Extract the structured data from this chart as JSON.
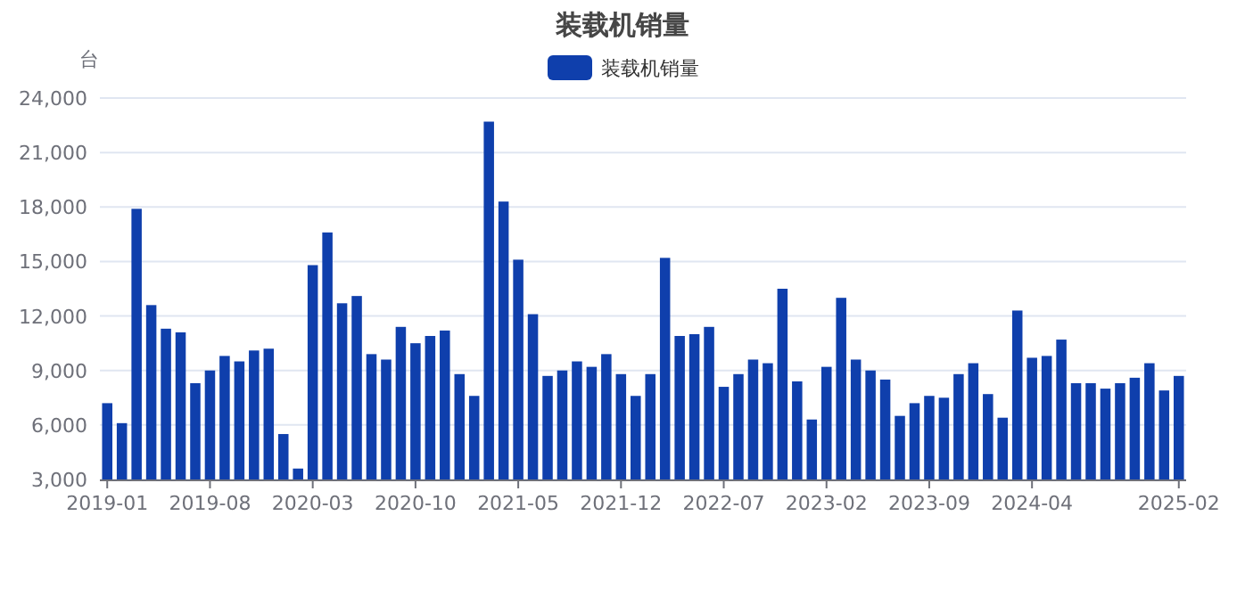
{
  "chart_data": {
    "type": "bar",
    "title": "装载机销量",
    "ylabel": "台",
    "categories": [
      "2019-01",
      null,
      null,
      null,
      null,
      null,
      null,
      "2019-08",
      null,
      null,
      null,
      null,
      null,
      null,
      "2020-03",
      null,
      null,
      null,
      null,
      null,
      null,
      "2020-10",
      null,
      null,
      null,
      null,
      null,
      null,
      "2021-05",
      null,
      null,
      null,
      null,
      null,
      null,
      "2021-12",
      null,
      null,
      null,
      null,
      null,
      null,
      "2022-07",
      null,
      null,
      null,
      null,
      null,
      null,
      "2023-02",
      null,
      null,
      null,
      null,
      null,
      null,
      "2023-09",
      null,
      null,
      null,
      null,
      null,
      null,
      "2024-04",
      null,
      null,
      null,
      null,
      null,
      null,
      null,
      null,
      null,
      "2025-02"
    ],
    "series": [
      {
        "name": "装载机销量",
        "color": "#0f3fac",
        "values": [
          7200,
          6100,
          17900,
          12600,
          11300,
          11100,
          8300,
          9000,
          9800,
          9500,
          10100,
          10200,
          5500,
          3600,
          14800,
          16600,
          12700,
          13100,
          9900,
          9600,
          11400,
          10500,
          10900,
          11200,
          8800,
          7600,
          22700,
          18300,
          15100,
          12100,
          8700,
          9000,
          9500,
          9200,
          9900,
          8800,
          7600,
          8800,
          15200,
          10900,
          11000,
          11400,
          8100,
          8800,
          9600,
          9400,
          13500,
          8400,
          6300,
          9200,
          13000,
          9600,
          9000,
          8500,
          6500,
          7200,
          7600,
          7500,
          8800,
          9400,
          7700,
          6400,
          12300,
          9700,
          9800,
          10700,
          8300,
          8300,
          8000,
          8300,
          8600,
          9400,
          7900,
          8700
        ]
      }
    ],
    "ylim": [
      3000,
      24000
    ],
    "yticks": [
      {
        "value": 3000,
        "label": "3,000"
      },
      {
        "value": 6000,
        "label": "6,000"
      },
      {
        "value": 9000,
        "label": "9,000"
      },
      {
        "value": 12000,
        "label": "12,000"
      },
      {
        "value": 15000,
        "label": "15,000"
      },
      {
        "value": 18000,
        "label": "18,000"
      },
      {
        "value": 21000,
        "label": "21,000"
      },
      {
        "value": 24000,
        "label": "24,000"
      }
    ],
    "grid": "y",
    "legend": "top"
  }
}
